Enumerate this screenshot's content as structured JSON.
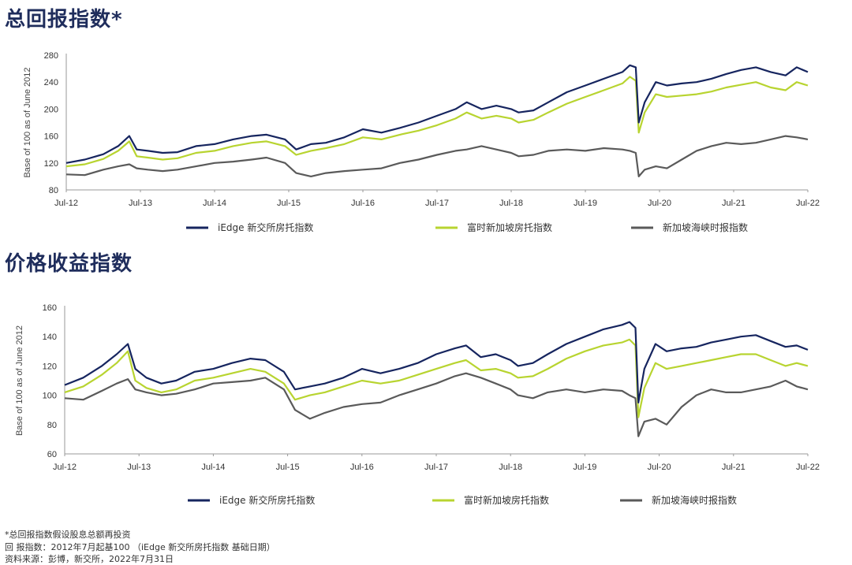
{
  "titles": {
    "total_return": "总回报指数*",
    "price_return": "价格收益指数"
  },
  "footnotes": {
    "line1": "*总回报指数假设股息总额再投资",
    "line2": "回 报指数：2012年7月起基100 （iEdge 新交所房托指数 基础日期）",
    "line3": "资料来源：彭博，新交所，2022年7月31日"
  },
  "colors": {
    "iedge": "#16255f",
    "ft": "#b8d430",
    "sti": "#5a5a5a"
  },
  "chart_data": [
    {
      "type": "line",
      "title": "总回报指数*",
      "xlabel": "",
      "ylabel": "Base of 100 as of June 2012",
      "ylim": [
        80,
        280
      ],
      "yticks": [
        80,
        120,
        160,
        200,
        240,
        280
      ],
      "xlim": [
        2012.5,
        2022.5
      ],
      "xtick_labels": [
        "Jul-12",
        "Jul-13",
        "Jul-14",
        "Jul-15",
        "Jul-16",
        "Jul-17",
        "Jul-18",
        "Jul-19",
        "Jul-20",
        "Jul-21",
        "Jul-22"
      ],
      "grid": false,
      "legend": "bottom",
      "series": [
        {
          "name": "iEdge 新交所房托指数",
          "color_key": "iedge",
          "x": [
            2012.5,
            2012.75,
            2013.0,
            2013.2,
            2013.35,
            2013.45,
            2013.6,
            2013.8,
            2014.0,
            2014.25,
            2014.5,
            2014.75,
            2015.0,
            2015.2,
            2015.45,
            2015.6,
            2015.8,
            2016.0,
            2016.25,
            2016.5,
            2016.75,
            2017.0,
            2017.25,
            2017.5,
            2017.75,
            2017.9,
            2018.1,
            2018.3,
            2018.5,
            2018.6,
            2018.8,
            2019.0,
            2019.25,
            2019.5,
            2019.75,
            2020.0,
            2020.1,
            2020.18,
            2020.22,
            2020.3,
            2020.45,
            2020.6,
            2020.8,
            2021.0,
            2021.2,
            2021.4,
            2021.6,
            2021.8,
            2022.0,
            2022.2,
            2022.35,
            2022.5
          ],
          "values": [
            120,
            125,
            133,
            145,
            160,
            140,
            138,
            135,
            136,
            145,
            148,
            155,
            160,
            162,
            155,
            140,
            148,
            150,
            158,
            170,
            165,
            172,
            180,
            190,
            200,
            210,
            200,
            205,
            200,
            195,
            198,
            210,
            225,
            235,
            245,
            255,
            265,
            262,
            180,
            210,
            240,
            235,
            238,
            240,
            245,
            252,
            258,
            262,
            255,
            250,
            262,
            255
          ]
        },
        {
          "name": "富时新加坡房托指数",
          "color_key": "ft",
          "x": [
            2012.5,
            2012.75,
            2013.0,
            2013.2,
            2013.35,
            2013.45,
            2013.6,
            2013.8,
            2014.0,
            2014.25,
            2014.5,
            2014.75,
            2015.0,
            2015.2,
            2015.45,
            2015.6,
            2015.8,
            2016.0,
            2016.25,
            2016.5,
            2016.75,
            2017.0,
            2017.25,
            2017.5,
            2017.75,
            2017.9,
            2018.1,
            2018.3,
            2018.5,
            2018.6,
            2018.8,
            2019.0,
            2019.25,
            2019.5,
            2019.75,
            2020.0,
            2020.1,
            2020.18,
            2020.22,
            2020.3,
            2020.45,
            2020.6,
            2020.8,
            2021.0,
            2021.2,
            2021.4,
            2021.6,
            2021.8,
            2022.0,
            2022.2,
            2022.35,
            2022.5
          ],
          "values": [
            115,
            118,
            126,
            138,
            152,
            130,
            128,
            125,
            127,
            135,
            138,
            145,
            150,
            152,
            145,
            132,
            138,
            142,
            148,
            158,
            155,
            162,
            168,
            176,
            186,
            195,
            186,
            190,
            186,
            180,
            184,
            195,
            208,
            218,
            228,
            238,
            248,
            242,
            165,
            195,
            222,
            218,
            220,
            222,
            226,
            232,
            236,
            240,
            232,
            228,
            240,
            235
          ]
        },
        {
          "name": "新加坡海峡时报指数",
          "color_key": "sti",
          "x": [
            2012.5,
            2012.75,
            2013.0,
            2013.2,
            2013.35,
            2013.45,
            2013.6,
            2013.8,
            2014.0,
            2014.25,
            2014.5,
            2014.75,
            2015.0,
            2015.2,
            2015.45,
            2015.6,
            2015.8,
            2016.0,
            2016.25,
            2016.5,
            2016.75,
            2017.0,
            2017.25,
            2017.5,
            2017.75,
            2017.9,
            2018.1,
            2018.3,
            2018.5,
            2018.6,
            2018.8,
            2019.0,
            2019.25,
            2019.5,
            2019.75,
            2020.0,
            2020.1,
            2020.18,
            2020.22,
            2020.3,
            2020.45,
            2020.6,
            2020.8,
            2021.0,
            2021.2,
            2021.4,
            2021.6,
            2021.8,
            2022.0,
            2022.2,
            2022.35,
            2022.5
          ],
          "values": [
            103,
            102,
            110,
            115,
            118,
            112,
            110,
            108,
            110,
            115,
            120,
            122,
            125,
            128,
            120,
            105,
            100,
            105,
            108,
            110,
            112,
            120,
            125,
            132,
            138,
            140,
            145,
            140,
            135,
            130,
            132,
            138,
            140,
            138,
            142,
            140,
            138,
            135,
            100,
            110,
            115,
            112,
            125,
            138,
            145,
            150,
            148,
            150,
            155,
            160,
            158,
            155
          ]
        }
      ]
    },
    {
      "type": "line",
      "title": "价格收益指数",
      "xlabel": "",
      "ylabel": "Base of 100 as of June 2012",
      "ylim": [
        60,
        160
      ],
      "yticks": [
        60,
        80,
        100,
        120,
        140,
        160
      ],
      "xlim": [
        2012.5,
        2022.5
      ],
      "xtick_labels": [
        "Jul-12",
        "Jul-13",
        "Jul-14",
        "Jul-15",
        "Jul-16",
        "Jul-17",
        "Jul-18",
        "Jul-19",
        "Jul-20",
        "Jul-21",
        "Jul-22"
      ],
      "grid": false,
      "legend": "bottom",
      "series": [
        {
          "name": "iEdge 新交所房托指数",
          "color_key": "iedge",
          "x": [
            2012.5,
            2012.75,
            2013.0,
            2013.2,
            2013.35,
            2013.45,
            2013.6,
            2013.8,
            2014.0,
            2014.25,
            2014.5,
            2014.75,
            2015.0,
            2015.2,
            2015.45,
            2015.6,
            2015.8,
            2016.0,
            2016.25,
            2016.5,
            2016.75,
            2017.0,
            2017.25,
            2017.5,
            2017.75,
            2017.9,
            2018.1,
            2018.3,
            2018.5,
            2018.6,
            2018.8,
            2019.0,
            2019.25,
            2019.5,
            2019.75,
            2020.0,
            2020.1,
            2020.18,
            2020.22,
            2020.3,
            2020.45,
            2020.6,
            2020.8,
            2021.0,
            2021.2,
            2021.4,
            2021.6,
            2021.8,
            2022.0,
            2022.2,
            2022.35,
            2022.5
          ],
          "values": [
            107,
            112,
            120,
            128,
            135,
            118,
            112,
            108,
            110,
            116,
            118,
            122,
            125,
            124,
            116,
            104,
            106,
            108,
            112,
            118,
            115,
            118,
            122,
            128,
            132,
            134,
            126,
            128,
            124,
            120,
            122,
            128,
            135,
            140,
            145,
            148,
            150,
            146,
            95,
            118,
            135,
            130,
            132,
            133,
            136,
            138,
            140,
            141,
            137,
            133,
            134,
            131
          ]
        },
        {
          "name": "富时新加坡房托指数",
          "color_key": "ft",
          "x": [
            2012.5,
            2012.75,
            2013.0,
            2013.2,
            2013.35,
            2013.45,
            2013.6,
            2013.8,
            2014.0,
            2014.25,
            2014.5,
            2014.75,
            2015.0,
            2015.2,
            2015.45,
            2015.6,
            2015.8,
            2016.0,
            2016.25,
            2016.5,
            2016.75,
            2017.0,
            2017.25,
            2017.5,
            2017.75,
            2017.9,
            2018.1,
            2018.3,
            2018.5,
            2018.6,
            2018.8,
            2019.0,
            2019.25,
            2019.5,
            2019.75,
            2020.0,
            2020.1,
            2020.18,
            2020.22,
            2020.3,
            2020.45,
            2020.6,
            2020.8,
            2021.0,
            2021.2,
            2021.4,
            2021.6,
            2021.8,
            2022.0,
            2022.2,
            2022.35,
            2022.5
          ],
          "values": [
            102,
            106,
            114,
            122,
            130,
            110,
            105,
            102,
            104,
            110,
            112,
            115,
            118,
            116,
            108,
            97,
            100,
            102,
            106,
            110,
            108,
            110,
            114,
            118,
            122,
            124,
            117,
            118,
            115,
            112,
            113,
            118,
            125,
            130,
            134,
            136,
            138,
            134,
            85,
            105,
            122,
            118,
            120,
            122,
            124,
            126,
            128,
            128,
            124,
            120,
            122,
            120
          ]
        },
        {
          "name": "新加坡海峡时报指数",
          "color_key": "sti",
          "x": [
            2012.5,
            2012.75,
            2013.0,
            2013.2,
            2013.35,
            2013.45,
            2013.6,
            2013.8,
            2014.0,
            2014.25,
            2014.5,
            2014.75,
            2015.0,
            2015.2,
            2015.45,
            2015.6,
            2015.8,
            2016.0,
            2016.25,
            2016.5,
            2016.75,
            2017.0,
            2017.25,
            2017.5,
            2017.75,
            2017.9,
            2018.1,
            2018.3,
            2018.5,
            2018.6,
            2018.8,
            2019.0,
            2019.25,
            2019.5,
            2019.75,
            2020.0,
            2020.1,
            2020.18,
            2020.22,
            2020.3,
            2020.45,
            2020.6,
            2020.8,
            2021.0,
            2021.2,
            2021.4,
            2021.6,
            2021.8,
            2022.0,
            2022.2,
            2022.35,
            2022.5
          ],
          "values": [
            98,
            97,
            103,
            108,
            111,
            104,
            102,
            100,
            101,
            104,
            108,
            109,
            110,
            112,
            104,
            90,
            84,
            88,
            92,
            94,
            95,
            100,
            104,
            108,
            113,
            115,
            112,
            108,
            104,
            100,
            98,
            102,
            104,
            102,
            104,
            103,
            100,
            98,
            72,
            82,
            84,
            80,
            92,
            100,
            104,
            102,
            102,
            104,
            106,
            110,
            106,
            104
          ]
        }
      ]
    }
  ]
}
